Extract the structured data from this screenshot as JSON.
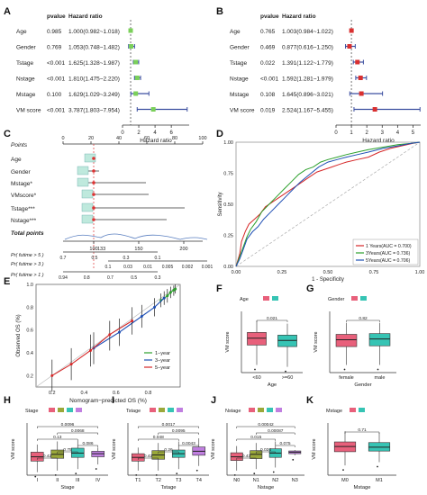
{
  "figure": {
    "panel_labels": [
      "A",
      "B",
      "C",
      "D",
      "E",
      "F",
      "G",
      "H",
      "I",
      "J",
      "K"
    ]
  },
  "forest": {
    "header_pvalue": "pvalue",
    "header_hr": "Hazard ratio",
    "xlabel": "Hazard ratio",
    "colors": {
      "point": "#3c4fa0",
      "bar": "#3c4fa0",
      "line": "#333333"
    }
  },
  "chart_data": [
    {
      "type": "forest",
      "panel": "A",
      "categories": [
        "Age",
        "Gender",
        "Tstage",
        "Nstage",
        "Mstage",
        "VM score"
      ],
      "pvalue_text": [
        "0.985",
        "0.769",
        "<0.001",
        "<0.001",
        "0.100",
        "<0.001"
      ],
      "hr_text": [
        "1.000(0.982~1.018)",
        "1.053(0.748~1.482)",
        "1.625(1.328~1.987)",
        "1.810(1.475~2.220)",
        "1.629(1.029~3.249)",
        "3.787(1.803~7.954)"
      ],
      "hr": [
        1.0,
        1.053,
        1.625,
        1.81,
        1.629,
        3.787
      ],
      "lower": [
        0.982,
        0.748,
        1.328,
        1.475,
        1.029,
        1.803
      ],
      "upper": [
        1.018,
        1.482,
        1.987,
        2.22,
        3.249,
        7.954
      ],
      "xticks": [
        0,
        2,
        4,
        6
      ],
      "xlim": [
        0,
        8.2
      ]
    },
    {
      "type": "forest",
      "panel": "B",
      "categories": [
        "Age",
        "Gender",
        "Tstage",
        "Nstage",
        "Mstage",
        "VM score"
      ],
      "pvalue_text": [
        "0.765",
        "0.469",
        "0.022",
        "<0.001",
        "0.108",
        "0.019"
      ],
      "hr_text": [
        "1.003(0.984~1.022)",
        "0.877(0.616~1.250)",
        "1.391(1.122~1.779)",
        "1.592(1.281~1.979)",
        "1.645(0.896~3.021)",
        "2.524(1.167~5.455)"
      ],
      "hr": [
        1.003,
        0.877,
        1.391,
        1.592,
        1.645,
        2.524
      ],
      "lower": [
        0.984,
        0.616,
        1.122,
        1.281,
        0.896,
        1.167
      ],
      "upper": [
        1.022,
        1.25,
        1.779,
        1.979,
        3.021,
        5.455
      ],
      "xticks": [
        0,
        1,
        2,
        3,
        4,
        5
      ],
      "xlim": [
        0,
        5.5
      ]
    },
    {
      "type": "nomogram",
      "panel": "C",
      "rows": [
        "Points",
        "Age",
        "Gender",
        "Mstage*",
        "VMscore*",
        "Tstage***",
        "Nstage***",
        "Total points"
      ],
      "points_ticks": [
        "0",
        "20",
        "40",
        "60",
        "80",
        "100"
      ],
      "total_ticks": [
        "100",
        "150",
        "200",
        "250",
        "300"
      ],
      "prob_rows": [
        "Pr( futime > 5 )",
        "Pr( futime > 3 )",
        "Pr( futime > 1 )"
      ],
      "prob_ticks_5": [
        "0.7",
        "0.5",
        "0.3",
        "0.1"
      ],
      "prob_ticks_3": [
        "0.1",
        "0.03",
        "0.01",
        "0.005",
        "0.002",
        "0.001"
      ],
      "prob_ticks_1": [
        "0.94",
        "0.8",
        "0.7",
        "0.5",
        "0.3"
      ],
      "highlight_value": "133"
    },
    {
      "type": "line",
      "panel": "D",
      "xlabel": "1 - Specificity",
      "ylabel": "Sensitivity",
      "xticks": [
        "0.00",
        "0.25",
        "0.50",
        "0.75",
        "1.00"
      ],
      "yticks": [
        "0.00",
        "0.25",
        "0.50",
        "0.75",
        "1.00"
      ],
      "xlim": [
        0,
        1
      ],
      "ylim": [
        0,
        1
      ],
      "legend_position": "bottom-right",
      "series": [
        {
          "name": "1 Years(AUC = 0.700)",
          "color": "#d62728",
          "x": [
            0,
            0.02,
            0.03,
            0.05,
            0.07,
            0.1,
            0.13,
            0.16,
            0.2,
            0.24,
            0.28,
            0.32,
            0.36,
            0.4,
            0.44,
            0.48,
            0.52,
            0.56,
            0.6,
            0.66,
            0.72,
            0.78,
            0.84,
            0.9,
            0.96,
            1.0
          ],
          "y": [
            0,
            0.1,
            0.2,
            0.28,
            0.34,
            0.38,
            0.42,
            0.48,
            0.52,
            0.56,
            0.6,
            0.64,
            0.68,
            0.72,
            0.76,
            0.78,
            0.8,
            0.82,
            0.84,
            0.86,
            0.88,
            0.92,
            0.95,
            0.97,
            0.99,
            1.0
          ]
        },
        {
          "name": "3Years(AUC = 0.736)",
          "color": "#2ca02c",
          "x": [
            0,
            0.02,
            0.04,
            0.06,
            0.08,
            0.11,
            0.14,
            0.18,
            0.22,
            0.26,
            0.3,
            0.34,
            0.38,
            0.42,
            0.46,
            0.5,
            0.55,
            0.6,
            0.66,
            0.72,
            0.8,
            0.88,
            0.95,
            1.0
          ],
          "y": [
            0,
            0.08,
            0.16,
            0.24,
            0.3,
            0.36,
            0.44,
            0.5,
            0.56,
            0.62,
            0.68,
            0.74,
            0.78,
            0.8,
            0.84,
            0.86,
            0.88,
            0.9,
            0.92,
            0.94,
            0.96,
            0.98,
            0.99,
            1.0
          ]
        },
        {
          "name": "5Years(AUC = 0.706)",
          "color": "#1f4fb4",
          "x": [
            0,
            0.02,
            0.04,
            0.06,
            0.09,
            0.12,
            0.15,
            0.19,
            0.23,
            0.27,
            0.31,
            0.35,
            0.4,
            0.45,
            0.5,
            0.55,
            0.6,
            0.66,
            0.72,
            0.8,
            0.88,
            0.95,
            1.0
          ],
          "y": [
            0,
            0.06,
            0.14,
            0.22,
            0.28,
            0.32,
            0.38,
            0.44,
            0.5,
            0.56,
            0.62,
            0.68,
            0.74,
            0.8,
            0.84,
            0.86,
            0.88,
            0.9,
            0.92,
            0.95,
            0.97,
            0.99,
            1.0
          ]
        }
      ]
    },
    {
      "type": "line",
      "panel": "E",
      "xlabel": "Nomogram−predicted OS (%)",
      "ylabel": "Observed OS (%)",
      "xticks": [
        "0.2",
        "0.4",
        "0.6",
        "0.8"
      ],
      "yticks": [
        "0.2",
        "0.4",
        "0.6",
        "0.8",
        "1.0"
      ],
      "xlim": [
        0.1,
        1.0
      ],
      "ylim": [
        0.1,
        1.0
      ],
      "legend_position": "bottom-right",
      "series": [
        {
          "name": "1−year",
          "color": "#2ca02c",
          "x": [
            0.88,
            0.92,
            0.94,
            0.96,
            0.97
          ],
          "y": [
            0.86,
            0.9,
            0.93,
            0.95,
            0.96
          ],
          "lo": [
            0.8,
            0.84,
            0.88,
            0.9,
            0.92
          ],
          "hi": [
            0.92,
            0.96,
            0.98,
            0.99,
            1.0
          ]
        },
        {
          "name": "3−year",
          "color": "#1f4fb4",
          "x": [
            0.46,
            0.62,
            0.76,
            0.84,
            0.9
          ],
          "y": [
            0.44,
            0.58,
            0.72,
            0.8,
            0.88
          ],
          "lo": [
            0.3,
            0.46,
            0.62,
            0.72,
            0.82
          ],
          "hi": [
            0.58,
            0.7,
            0.82,
            0.88,
            0.94
          ]
        },
        {
          "name": "5−year",
          "color": "#d62728",
          "x": [
            0.2,
            0.32,
            0.44,
            0.56,
            0.7
          ],
          "y": [
            0.2,
            0.3,
            0.42,
            0.56,
            0.68
          ],
          "lo": [
            0.06,
            0.16,
            0.28,
            0.42,
            0.56
          ],
          "hi": [
            0.34,
            0.44,
            0.56,
            0.68,
            0.8
          ]
        }
      ]
    },
    {
      "type": "box",
      "panel": "F",
      "legend_title": "Age",
      "categories": [
        "<60",
        ">=60"
      ],
      "xlabel": "Age",
      "ylabel": "VM score",
      "pvalues": [
        "0.021"
      ],
      "colors": [
        "#e8607b",
        "#36c4b4"
      ],
      "stats": [
        {
          "min": 1.2,
          "q1": 1.72,
          "median": 1.9,
          "q3": 2.05,
          "max": 2.35
        },
        {
          "min": 1.15,
          "q1": 1.68,
          "median": 1.84,
          "q3": 1.98,
          "max": 2.28
        }
      ],
      "ylim": [
        1.0,
        2.6
      ]
    },
    {
      "type": "box",
      "panel": "G",
      "legend_title": "Gender",
      "categories": [
        "female",
        "male"
      ],
      "xlabel": "Gender",
      "ylabel": "VM score",
      "pvalues": [
        "0.82"
      ],
      "colors": [
        "#e8607b",
        "#36c4b4"
      ],
      "stats": [
        {
          "min": 1.2,
          "q1": 1.68,
          "median": 1.86,
          "q3": 2.0,
          "max": 2.3
        },
        {
          "min": 1.2,
          "q1": 1.7,
          "median": 1.88,
          "q3": 2.02,
          "max": 2.3
        }
      ],
      "ylim": [
        1.0,
        2.6
      ]
    },
    {
      "type": "box",
      "panel": "H",
      "legend_title": "Stage",
      "categories": [
        "I",
        "II",
        "III",
        "IV"
      ],
      "xlabel": "Stage",
      "ylabel": "VM score",
      "pvalues": [
        "0.42",
        "0.75",
        "0.086",
        "0.13",
        "0.0068",
        "0.0096"
      ],
      "colors": [
        "#e8607b",
        "#9aa83a",
        "#36c4b4",
        "#c07fe0"
      ],
      "stats": [
        {
          "min": 1.3,
          "q1": 1.66,
          "median": 1.8,
          "q3": 1.95,
          "max": 2.2
        },
        {
          "min": 1.35,
          "q1": 1.75,
          "median": 1.88,
          "q3": 2.02,
          "max": 2.3
        },
        {
          "min": 1.4,
          "q1": 1.78,
          "median": 1.92,
          "q3": 2.08,
          "max": 2.35
        },
        {
          "min": 1.55,
          "q1": 1.8,
          "median": 1.9,
          "q3": 1.98,
          "max": 2.1
        }
      ],
      "ylim": [
        1.2,
        2.9
      ]
    },
    {
      "type": "box",
      "panel": "I",
      "legend_title": "Tstage",
      "categories": [
        "T1",
        "T2",
        "T3",
        "T4"
      ],
      "xlabel": "Tstage",
      "ylabel": "VM score",
      "pvalues": [
        "0.42",
        "0.26",
        "0.0043",
        "0.048",
        "0.0095",
        "0.0017"
      ],
      "colors": [
        "#e8607b",
        "#9aa83a",
        "#36c4b4",
        "#c07fe0"
      ],
      "stats": [
        {
          "min": 1.35,
          "q1": 1.66,
          "median": 1.78,
          "q3": 1.9,
          "max": 2.1
        },
        {
          "min": 1.35,
          "q1": 1.72,
          "median": 1.86,
          "q3": 2.0,
          "max": 2.25
        },
        {
          "min": 1.4,
          "q1": 1.78,
          "median": 1.9,
          "q3": 2.02,
          "max": 2.3
        },
        {
          "min": 1.5,
          "q1": 1.85,
          "median": 1.98,
          "q3": 2.12,
          "max": 2.4
        }
      ],
      "ylim": [
        1.2,
        2.9
      ]
    },
    {
      "type": "box",
      "panel": "J",
      "legend_title": "Nstage",
      "categories": [
        "N0",
        "N1",
        "N2",
        "N3"
      ],
      "xlabel": "Nstage",
      "ylabel": "VM score",
      "pvalues": [
        "0.43",
        "0.024",
        "0.075",
        "0.015",
        "0.00087",
        "0.00042"
      ],
      "colors": [
        "#e8607b",
        "#9aa83a",
        "#36c4b4",
        "#c07fe0"
      ],
      "stats": [
        {
          "min": 1.35,
          "q1": 1.68,
          "median": 1.8,
          "q3": 1.93,
          "max": 2.15
        },
        {
          "min": 1.4,
          "q1": 1.74,
          "median": 1.88,
          "q3": 2.0,
          "max": 2.25
        },
        {
          "min": 1.45,
          "q1": 1.78,
          "median": 1.92,
          "q3": 2.06,
          "max": 2.3
        },
        {
          "min": 1.85,
          "q1": 1.9,
          "median": 1.95,
          "q3": 1.99,
          "max": 2.02
        }
      ],
      "ylim": [
        1.2,
        2.9
      ]
    },
    {
      "type": "box",
      "panel": "K",
      "legend_title": "Mstage",
      "categories": [
        "M0",
        "M1"
      ],
      "xlabel": "Mstage",
      "ylabel": "VM score",
      "pvalues": [
        "0.71"
      ],
      "colors": [
        "#e8607b",
        "#36c4b4"
      ],
      "stats": [
        {
          "min": 1.3,
          "q1": 1.72,
          "median": 1.88,
          "q3": 2.02,
          "max": 2.35
        },
        {
          "min": 1.4,
          "q1": 1.74,
          "median": 1.86,
          "q3": 2.0,
          "max": 2.3
        }
      ],
      "ylim": [
        1.0,
        2.6
      ]
    }
  ]
}
